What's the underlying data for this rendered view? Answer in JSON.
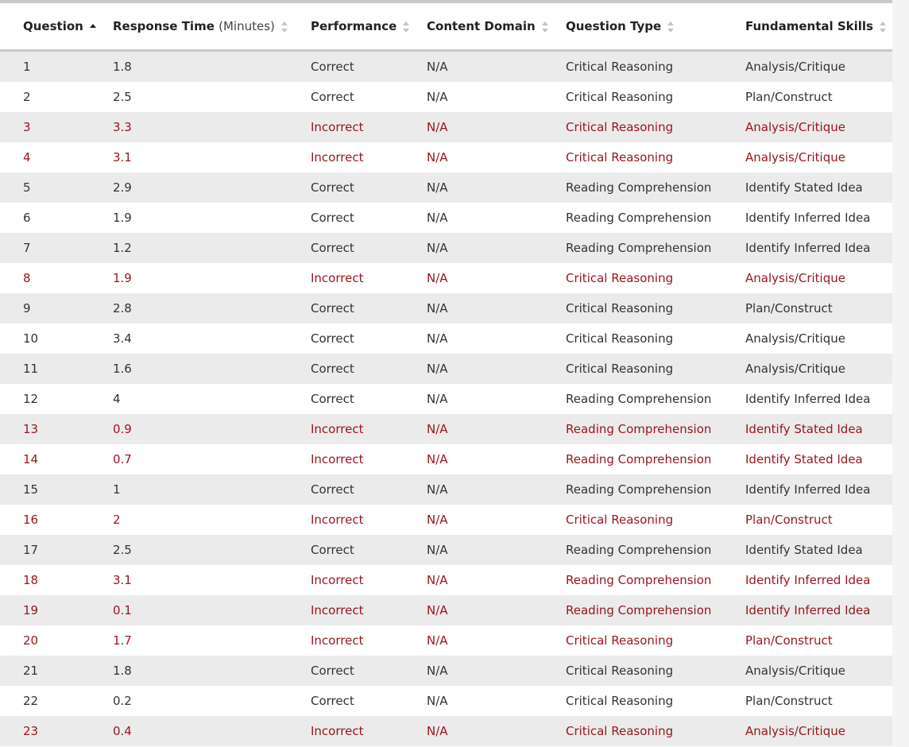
{
  "columns": [
    {
      "label": "Question",
      "sort": "ascending"
    },
    {
      "label": "Response Time",
      "unit": "(Minutes)",
      "sort": "none"
    },
    {
      "label": "Performance",
      "sort": "none"
    },
    {
      "label": "Content Domain",
      "sort": "none"
    },
    {
      "label": "Question Type",
      "sort": "none"
    },
    {
      "label": "Fundamental Skills",
      "sort": "none"
    }
  ],
  "colors": {
    "incorrect": "#9a1620",
    "stripe": "#ebebeb"
  },
  "rows": [
    [
      "1",
      "1.8",
      "Correct",
      "N/A",
      "Critical Reasoning",
      "Analysis/Critique"
    ],
    [
      "2",
      "2.5",
      "Correct",
      "N/A",
      "Critical Reasoning",
      "Plan/Construct"
    ],
    [
      "3",
      "3.3",
      "Incorrect",
      "N/A",
      "Critical Reasoning",
      "Analysis/Critique"
    ],
    [
      "4",
      "3.1",
      "Incorrect",
      "N/A",
      "Critical Reasoning",
      "Analysis/Critique"
    ],
    [
      "5",
      "2.9",
      "Correct",
      "N/A",
      "Reading Comprehension",
      "Identify Stated Idea"
    ],
    [
      "6",
      "1.9",
      "Correct",
      "N/A",
      "Reading Comprehension",
      "Identify Inferred Idea"
    ],
    [
      "7",
      "1.2",
      "Correct",
      "N/A",
      "Reading Comprehension",
      "Identify Inferred Idea"
    ],
    [
      "8",
      "1.9",
      "Incorrect",
      "N/A",
      "Critical Reasoning",
      "Analysis/Critique"
    ],
    [
      "9",
      "2.8",
      "Correct",
      "N/A",
      "Critical Reasoning",
      "Plan/Construct"
    ],
    [
      "10",
      "3.4",
      "Correct",
      "N/A",
      "Critical Reasoning",
      "Analysis/Critique"
    ],
    [
      "11",
      "1.6",
      "Correct",
      "N/A",
      "Critical Reasoning",
      "Analysis/Critique"
    ],
    [
      "12",
      "4",
      "Correct",
      "N/A",
      "Reading Comprehension",
      "Identify Inferred Idea"
    ],
    [
      "13",
      "0.9",
      "Incorrect",
      "N/A",
      "Reading Comprehension",
      "Identify Stated Idea"
    ],
    [
      "14",
      "0.7",
      "Incorrect",
      "N/A",
      "Reading Comprehension",
      "Identify Stated Idea"
    ],
    [
      "15",
      "1",
      "Correct",
      "N/A",
      "Reading Comprehension",
      "Identify Inferred Idea"
    ],
    [
      "16",
      "2",
      "Incorrect",
      "N/A",
      "Critical Reasoning",
      "Plan/Construct"
    ],
    [
      "17",
      "2.5",
      "Correct",
      "N/A",
      "Reading Comprehension",
      "Identify Stated Idea"
    ],
    [
      "18",
      "3.1",
      "Incorrect",
      "N/A",
      "Reading Comprehension",
      "Identify Inferred Idea"
    ],
    [
      "19",
      "0.1",
      "Incorrect",
      "N/A",
      "Reading Comprehension",
      "Identify Inferred Idea"
    ],
    [
      "20",
      "1.7",
      "Incorrect",
      "N/A",
      "Critical Reasoning",
      "Plan/Construct"
    ],
    [
      "21",
      "1.8",
      "Correct",
      "N/A",
      "Critical Reasoning",
      "Analysis/Critique"
    ],
    [
      "22",
      "0.2",
      "Correct",
      "N/A",
      "Critical Reasoning",
      "Plan/Construct"
    ],
    [
      "23",
      "0.4",
      "Incorrect",
      "N/A",
      "Critical Reasoning",
      "Analysis/Critique"
    ]
  ]
}
